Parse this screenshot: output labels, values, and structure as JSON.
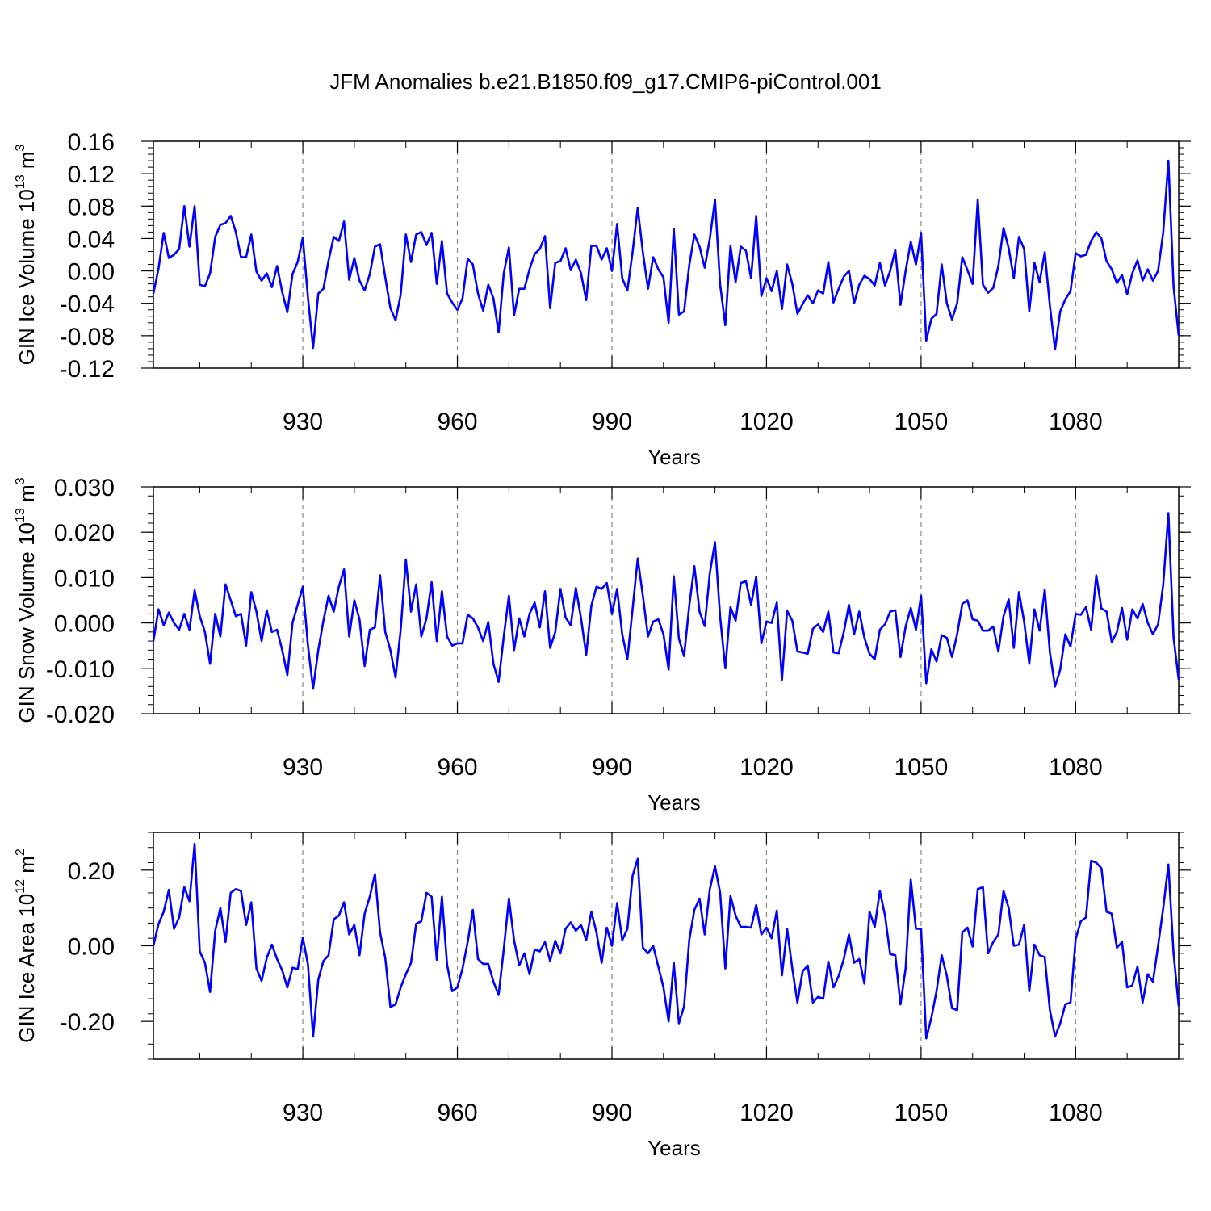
{
  "figure": {
    "title": "JFM Anomalies b.e21.B1850.f09_g17.CMIP6-piControl.001",
    "line_color": "#0000ff",
    "gridline_color": "#888888"
  },
  "chart_data": [
    {
      "type": "line",
      "title": "JFM Anomalies b.e21.B1850.f09_g17.CMIP6-piControl.001",
      "xlabel": "Years",
      "ylabel_main": "GIN Ice Volume 10",
      "ylabel_exp": "13",
      "ylabel_unit": " m",
      "ylabel_unit_exp": "3",
      "xlim": [
        901,
        1100
      ],
      "ylim": [
        -0.12,
        0.16
      ],
      "yticks": [
        -0.12,
        -0.08,
        -0.04,
        0.0,
        0.04,
        0.08,
        0.12,
        0.16
      ],
      "ytick_labels": [
        "-0.12",
        "-0.08",
        "-0.04",
        "0.00",
        "0.04",
        "0.08",
        "0.12",
        "0.16"
      ],
      "xticks": [
        930,
        960,
        990,
        1020,
        1050,
        1080
      ],
      "xtick_labels": [
        "930",
        "960",
        "990",
        "1020",
        "1050",
        "1080"
      ],
      "series": [
        {
          "name": "GIN Ice Volume",
          "x_start": 901,
          "values": [
            -0.028,
            0.003,
            0.047,
            0.016,
            0.02,
            0.027,
            0.08,
            0.03,
            0.08,
            -0.017,
            -0.019,
            -0.003,
            0.042,
            0.057,
            0.059,
            0.068,
            0.048,
            0.017,
            0.017,
            0.045,
            -0.001,
            -0.012,
            -0.003,
            -0.02,
            0.006,
            -0.026,
            -0.051,
            -0.004,
            0.011,
            0.041,
            -0.033,
            -0.095,
            -0.028,
            -0.022,
            0.013,
            0.042,
            0.037,
            0.061,
            -0.011,
            0.016,
            -0.012,
            -0.024,
            -0.004,
            0.03,
            0.033,
            -0.008,
            -0.046,
            -0.061,
            -0.029,
            0.045,
            0.011,
            0.045,
            0.048,
            0.032,
            0.047,
            -0.016,
            0.037,
            -0.028,
            -0.039,
            -0.048,
            -0.034,
            0.015,
            0.008,
            -0.028,
            -0.049,
            -0.017,
            -0.034,
            -0.076,
            -0.003,
            0.029,
            -0.055,
            -0.022,
            -0.022,
            0.002,
            0.021,
            0.027,
            0.043,
            -0.046,
            0.01,
            0.012,
            0.028,
            0.001,
            0.014,
            -0.003,
            -0.036,
            0.031,
            0.031,
            0.014,
            0.028,
            0.0,
            0.058,
            -0.009,
            -0.024,
            0.023,
            0.078,
            0.023,
            -0.022,
            0.017,
            0.002,
            -0.008,
            -0.064,
            0.052,
            -0.054,
            -0.05,
            0.007,
            0.045,
            0.03,
            0.004,
            0.04,
            0.088,
            -0.017,
            -0.067,
            0.031,
            -0.014,
            0.03,
            0.025,
            -0.009,
            0.068,
            -0.031,
            -0.009,
            -0.025,
            0.0,
            -0.047,
            0.008,
            -0.016,
            -0.053,
            -0.041,
            -0.03,
            -0.04,
            -0.024,
            -0.028,
            0.011,
            -0.039,
            -0.022,
            -0.007,
            0.0,
            -0.04,
            -0.017,
            -0.006,
            -0.01,
            -0.018,
            0.01,
            -0.018,
            0.0,
            0.026,
            -0.042,
            0.0,
            0.036,
            0.008,
            0.047,
            -0.086,
            -0.059,
            -0.053,
            0.008,
            -0.04,
            -0.06,
            -0.04,
            0.017,
            0.001,
            -0.016,
            0.088,
            -0.017,
            -0.027,
            -0.021,
            0.006,
            0.053,
            0.028,
            -0.009,
            0.042,
            0.027,
            -0.05,
            0.01,
            -0.014,
            0.023,
            -0.043,
            -0.097,
            -0.05,
            -0.035,
            -0.025,
            0.022,
            0.018,
            0.02,
            0.037,
            0.048,
            0.04,
            0.012,
            0.002,
            -0.015,
            -0.005,
            -0.029,
            -0.003,
            0.013,
            -0.012,
            0.002,
            -0.012,
            0.0,
            0.048,
            0.136,
            -0.019,
            -0.08
          ]
        }
      ]
    },
    {
      "type": "line",
      "xlabel": "Years",
      "ylabel_main": "GIN Snow Volume 10",
      "ylabel_exp": "13",
      "ylabel_unit": " m",
      "ylabel_unit_exp": "3",
      "xlim": [
        901,
        1100
      ],
      "ylim": [
        -0.02,
        0.03
      ],
      "yticks": [
        -0.02,
        -0.01,
        0.0,
        0.01,
        0.02,
        0.03
      ],
      "ytick_labels": [
        "-0.020",
        "-0.010",
        "0.000",
        "0.010",
        "0.020",
        "0.030"
      ],
      "xticks": [
        930,
        960,
        990,
        1020,
        1050,
        1080
      ],
      "xtick_labels": [
        "930",
        "960",
        "990",
        "1020",
        "1050",
        "1080"
      ],
      "series": [
        {
          "name": "GIN Snow Volume",
          "x_start": 901,
          "values": [
            -0.004,
            0.003,
            -0.0005,
            0.0023,
            0.0,
            -0.0015,
            0.002,
            -0.0015,
            0.0072,
            0.0015,
            -0.002,
            -0.009,
            0.002,
            -0.003,
            0.0085,
            0.005,
            0.0015,
            0.002,
            -0.005,
            0.0068,
            0.0025,
            -0.004,
            0.0028,
            -0.002,
            -0.0015,
            -0.006,
            -0.0115,
            0.0,
            0.004,
            0.008,
            -0.005,
            -0.0145,
            -0.006,
            0.0005,
            0.006,
            0.0025,
            0.008,
            0.0118,
            -0.003,
            0.005,
            0.0008,
            -0.0095,
            -0.0015,
            -0.001,
            0.0105,
            -0.002,
            -0.006,
            -0.012,
            -0.0015,
            0.014,
            0.0025,
            0.0085,
            -0.003,
            0.001,
            0.009,
            -0.004,
            0.007,
            -0.003,
            -0.005,
            -0.0045,
            -0.0045,
            0.0018,
            0.001,
            -0.001,
            -0.004,
            0.0002,
            -0.009,
            -0.013,
            -0.003,
            0.006,
            -0.006,
            0.001,
            -0.003,
            0.002,
            0.0045,
            -0.001,
            0.007,
            -0.0055,
            -0.002,
            0.0075,
            0.0012,
            -0.0005,
            0.0077,
            0.001,
            -0.007,
            0.0038,
            0.008,
            0.0075,
            0.0088,
            0.002,
            0.0075,
            -0.0025,
            -0.008,
            0.003,
            0.0142,
            0.006,
            -0.003,
            0.0003,
            0.0008,
            -0.0025,
            -0.0103,
            0.0103,
            -0.0035,
            -0.0073,
            0.0038,
            0.0125,
            0.0025,
            -0.0007,
            0.011,
            0.0178,
            0.0013,
            -0.01,
            0.0035,
            0.0005,
            0.0088,
            0.0092,
            0.004,
            0.0102,
            -0.0045,
            0.0003,
            0.0,
            0.0045,
            -0.0125,
            0.0027,
            0.0005,
            -0.0063,
            -0.0065,
            -0.0068,
            -0.0013,
            -0.0003,
            -0.002,
            0.0025,
            -0.0065,
            -0.0067,
            -0.002,
            0.004,
            -0.0025,
            0.0025,
            -0.0033,
            -0.0068,
            -0.008,
            -0.0015,
            -0.0003,
            0.0025,
            0.0028,
            -0.0075,
            -0.0008,
            0.0033,
            -0.0015,
            0.006,
            -0.0133,
            -0.0058,
            -0.0085,
            -0.0027,
            -0.0033,
            -0.0075,
            -0.0025,
            0.0042,
            0.005,
            0.0008,
            0.0005,
            -0.0017,
            -0.0017,
            -0.0008,
            -0.0063,
            0.0015,
            0.0052,
            -0.0055,
            0.0068,
            0.0003,
            -0.009,
            0.003,
            -0.0017,
            0.0073,
            -0.0065,
            -0.014,
            -0.0103,
            -0.0025,
            -0.0052,
            0.002,
            0.0018,
            0.0035,
            -0.0015,
            0.0105,
            0.0032,
            0.0025,
            -0.0042,
            -0.002,
            0.0033,
            -0.0037,
            0.003,
            0.001,
            0.0042,
            0.0,
            -0.0025,
            -0.0003,
            0.0085,
            0.0242,
            -0.0032,
            -0.0125
          ]
        }
      ]
    },
    {
      "type": "line",
      "xlabel": "Years",
      "ylabel_main": "GIN Ice Area 10",
      "ylabel_exp": "12",
      "ylabel_unit": " m",
      "ylabel_unit_exp": "2",
      "xlim": [
        901,
        1100
      ],
      "ylim": [
        -0.3,
        0.3
      ],
      "yticks": [
        -0.2,
        0.0,
        0.2
      ],
      "ytick_labels": [
        "-0.20",
        "0.00",
        "0.20"
      ],
      "xticks": [
        930,
        960,
        990,
        1020,
        1050,
        1080
      ],
      "xtick_labels": [
        "930",
        "960",
        "990",
        "1020",
        "1050",
        "1080"
      ],
      "series": [
        {
          "name": "GIN Ice Area",
          "x_start": 901,
          "values": [
            0.0,
            0.058,
            0.09,
            0.148,
            0.045,
            0.075,
            0.155,
            0.118,
            0.27,
            -0.015,
            -0.045,
            -0.122,
            0.04,
            0.1,
            0.01,
            0.14,
            0.15,
            0.145,
            0.055,
            0.115,
            -0.06,
            -0.093,
            -0.032,
            0.003,
            -0.035,
            -0.065,
            -0.11,
            -0.058,
            -0.062,
            0.022,
            -0.05,
            -0.24,
            -0.09,
            -0.04,
            -0.025,
            0.07,
            0.08,
            0.115,
            0.03,
            0.055,
            -0.025,
            0.085,
            0.13,
            0.19,
            0.035,
            -0.032,
            -0.162,
            -0.155,
            -0.11,
            -0.075,
            -0.045,
            0.058,
            0.065,
            0.14,
            0.13,
            -0.037,
            0.13,
            -0.05,
            -0.12,
            -0.11,
            -0.06,
            0.01,
            0.095,
            -0.035,
            -0.048,
            -0.048,
            -0.095,
            -0.13,
            -0.01,
            0.125,
            0.015,
            -0.052,
            -0.02,
            -0.075,
            -0.01,
            -0.015,
            0.01,
            -0.04,
            0.013,
            -0.02,
            0.045,
            0.062,
            0.04,
            0.055,
            0.015,
            0.09,
            0.035,
            -0.045,
            0.048,
            0.0,
            0.113,
            0.015,
            0.045,
            0.185,
            0.23,
            -0.005,
            -0.02,
            0.0,
            -0.055,
            -0.11,
            -0.2,
            -0.045,
            -0.205,
            -0.16,
            0.015,
            0.095,
            0.125,
            0.03,
            0.15,
            0.21,
            0.14,
            -0.06,
            0.132,
            0.08,
            0.05,
            0.05,
            0.048,
            0.108,
            0.03,
            0.048,
            0.02,
            0.093,
            -0.078,
            0.045,
            -0.06,
            -0.15,
            -0.068,
            -0.052,
            -0.15,
            -0.135,
            -0.14,
            -0.042,
            -0.11,
            -0.08,
            -0.035,
            0.03,
            -0.045,
            -0.035,
            -0.1,
            0.09,
            0.05,
            0.145,
            0.08,
            -0.022,
            -0.025,
            -0.155,
            -0.06,
            0.175,
            0.045,
            0.045,
            -0.245,
            -0.19,
            -0.12,
            -0.025,
            -0.08,
            -0.165,
            -0.17,
            0.035,
            0.048,
            -0.002,
            0.15,
            0.155,
            -0.02,
            0.01,
            0.03,
            0.145,
            0.1,
            0.0,
            0.003,
            0.055,
            -0.12,
            0.003,
            -0.025,
            -0.03,
            -0.17,
            -0.24,
            -0.205,
            -0.155,
            -0.15,
            0.018,
            0.065,
            0.075,
            0.225,
            0.22,
            0.205,
            0.09,
            0.085,
            -0.005,
            0.01,
            -0.11,
            -0.105,
            -0.055,
            -0.15,
            -0.075,
            -0.095,
            0.0,
            0.1,
            0.215,
            -0.02,
            -0.16
          ]
        }
      ]
    }
  ]
}
